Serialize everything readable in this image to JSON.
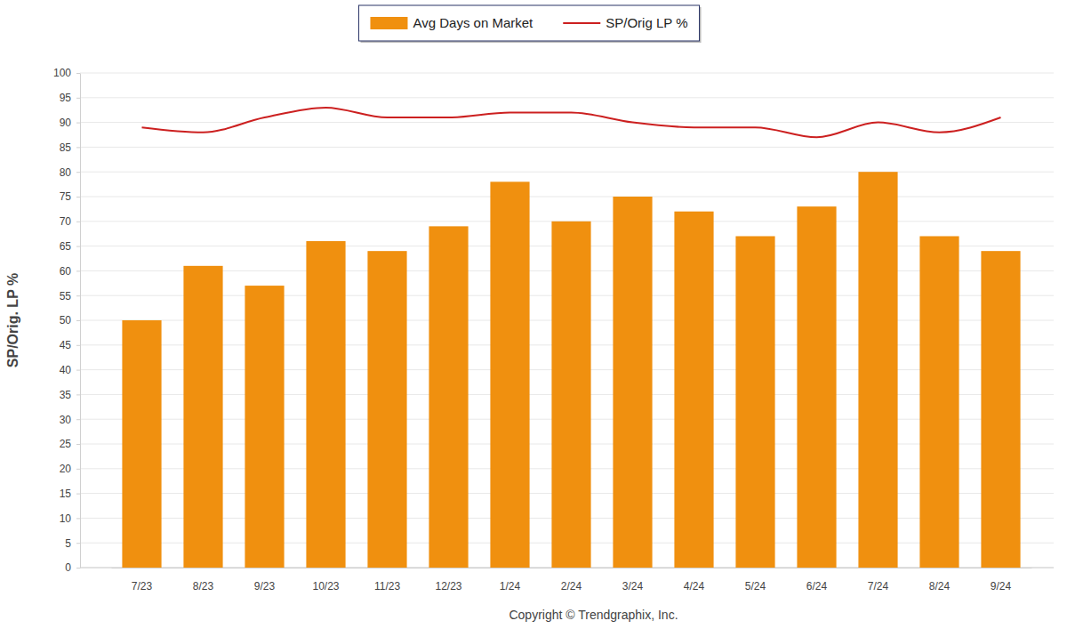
{
  "chart_data": {
    "type": "bar",
    "y_label": "SP/Orig. LP %",
    "annotations": [
      "Copyright © Trendgraphix, Inc."
    ],
    "categories": [
      "7/23",
      "8/23",
      "9/23",
      "10/23",
      "11/23",
      "12/23",
      "1/24",
      "2/24",
      "3/24",
      "4/24",
      "5/24",
      "6/24",
      "7/24",
      "8/24",
      "9/24"
    ],
    "series": [
      {
        "name": "Avg Days on Market",
        "type": "bar",
        "color": "#f0900f",
        "values": [
          50,
          61,
          57,
          66,
          64,
          69,
          78,
          70,
          75,
          72,
          67,
          73,
          80,
          67,
          64
        ]
      },
      {
        "name": "SP/Orig LP %",
        "type": "line",
        "color": "#cc2020",
        "values": [
          89,
          88,
          91,
          93,
          91,
          91,
          92,
          92,
          90,
          89,
          89,
          87,
          90,
          88,
          91
        ]
      }
    ],
    "ylim": [
      0,
      100
    ],
    "yticks": [
      0,
      5,
      10,
      15,
      20,
      25,
      30,
      35,
      40,
      45,
      50,
      55,
      60,
      65,
      70,
      75,
      80,
      85,
      90,
      95,
      100
    ],
    "grid": true,
    "legend": "top"
  }
}
